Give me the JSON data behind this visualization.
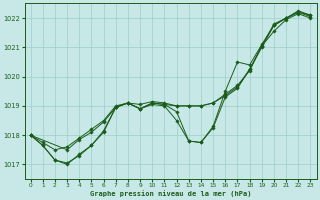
{
  "xlabel": "Graphe pression niveau de la mer (hPa)",
  "background_color": "#c8e8e8",
  "grid_color": "#9ecece",
  "line_color": "#1a5c1a",
  "xmin": -0.5,
  "xmax": 23.5,
  "ymin": 1016.5,
  "ymax": 1022.5,
  "yticks": [
    1017,
    1018,
    1019,
    1020,
    1021,
    1022
  ],
  "xticks": [
    0,
    1,
    2,
    3,
    4,
    5,
    6,
    7,
    8,
    9,
    10,
    11,
    12,
    13,
    14,
    15,
    16,
    17,
    18,
    19,
    20,
    21,
    22,
    23
  ],
  "series": [
    {
      "x": [
        0,
        1,
        2,
        3,
        4,
        5,
        6,
        7,
        8,
        9,
        10,
        11,
        12,
        13,
        14,
        15,
        16,
        17,
        18,
        19,
        20,
        21,
        22,
        23
      ],
      "y": [
        1018.0,
        1017.75,
        1017.5,
        1017.6,
        1017.9,
        1018.2,
        1018.5,
        1019.0,
        1019.1,
        1019.05,
        1019.15,
        1019.1,
        1019.0,
        1019.0,
        1019.0,
        1019.1,
        1019.4,
        1019.7,
        1020.2,
        1021.05,
        1021.8,
        1022.0,
        1022.2,
        1022.1
      ]
    },
    {
      "x": [
        0,
        1,
        2,
        3,
        4,
        5,
        6,
        7,
        8,
        9,
        10,
        11,
        12,
        13,
        14,
        15,
        16,
        17,
        18,
        19,
        20,
        21,
        22,
        23
      ],
      "y": [
        1018.0,
        1017.65,
        1017.15,
        1017.0,
        1017.35,
        1017.65,
        1018.15,
        1018.95,
        1019.1,
        1018.9,
        1019.05,
        1019.0,
        1018.5,
        1017.8,
        1017.75,
        1018.3,
        1019.5,
        1020.5,
        1020.4,
        1021.1,
        1021.75,
        1022.0,
        1022.25,
        1022.1
      ]
    },
    {
      "x": [
        0,
        3,
        4,
        5,
        6,
        7,
        8,
        9,
        10,
        11,
        12,
        13,
        14,
        15,
        16,
        17,
        18,
        19,
        20,
        21,
        22,
        23
      ],
      "y": [
        1018.0,
        1017.5,
        1017.85,
        1018.1,
        1018.45,
        1018.95,
        1019.1,
        1018.9,
        1019.1,
        1019.05,
        1019.0,
        1019.0,
        1019.0,
        1019.1,
        1019.35,
        1019.65,
        1020.25,
        1021.0,
        1021.75,
        1022.0,
        1022.2,
        1022.05
      ]
    },
    {
      "x": [
        0,
        1,
        2,
        3,
        4,
        5,
        6,
        7,
        8,
        9,
        10,
        11,
        12,
        13,
        14,
        15,
        16,
        17,
        18,
        19,
        20,
        21,
        22,
        23
      ],
      "y": [
        1018.0,
        1017.65,
        1017.15,
        1017.05,
        1017.3,
        1017.65,
        1018.1,
        1018.95,
        1019.1,
        1018.9,
        1019.1,
        1019.05,
        1018.8,
        1017.8,
        1017.75,
        1018.25,
        1019.3,
        1019.6,
        1020.25,
        1021.05,
        1021.55,
        1021.95,
        1022.15,
        1022.0
      ]
    }
  ]
}
